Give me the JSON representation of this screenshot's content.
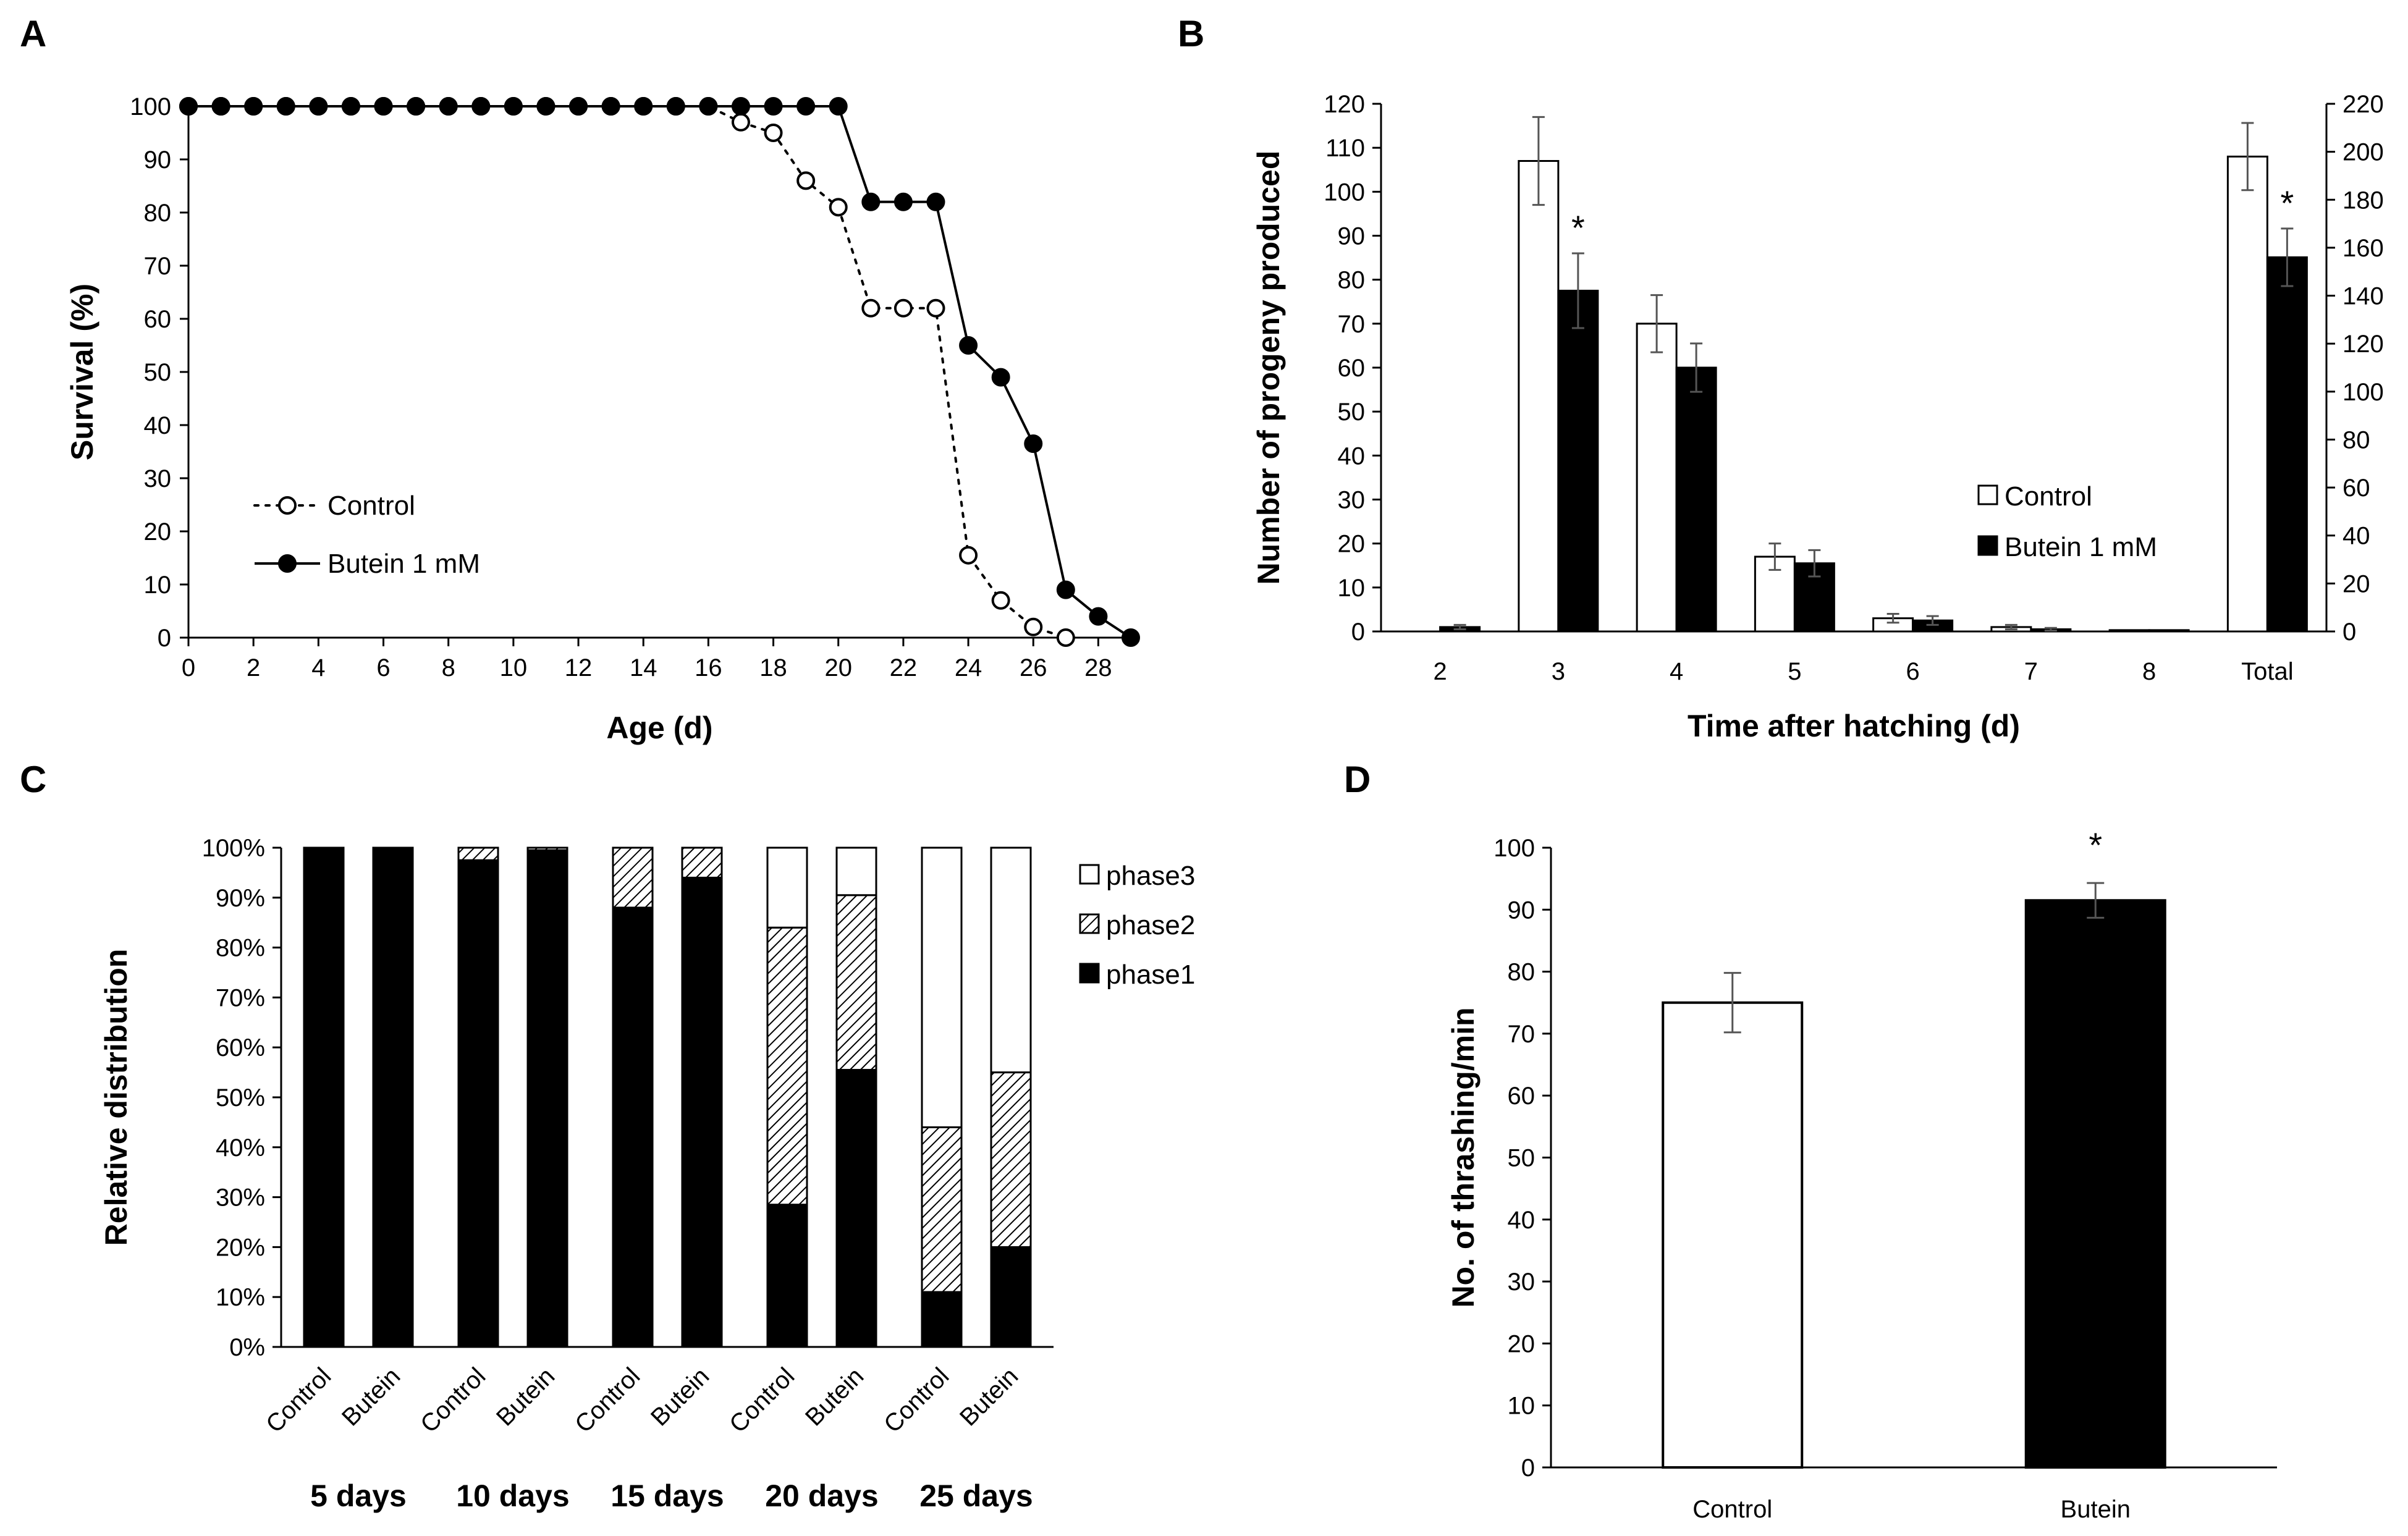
{
  "chart_data": [
    {
      "id": "A",
      "panel_label": "A",
      "type": "line",
      "xlabel": "Age (d)",
      "ylabel": "Survival (%)",
      "xlim": [
        0,
        29
      ],
      "ylim": [
        0,
        100
      ],
      "x_ticks": [
        "0",
        "2",
        "4",
        "6",
        "8",
        "10",
        "12",
        "14",
        "16",
        "18",
        "20",
        "22",
        "24",
        "26",
        "28"
      ],
      "y_ticks": [
        "0",
        "10",
        "20",
        "30",
        "40",
        "50",
        "60",
        "70",
        "80",
        "90",
        "100"
      ],
      "legend_position": "bottom-left",
      "series": [
        {
          "name": "Control",
          "style": "dotted, open circles",
          "x": [
            0,
            1,
            2,
            3,
            4,
            5,
            6,
            7,
            8,
            9,
            10,
            11,
            12,
            13,
            14,
            15,
            16,
            17,
            18,
            19,
            20,
            21,
            22,
            23,
            24,
            25,
            26,
            27
          ],
          "y": [
            100,
            100,
            100,
            100,
            100,
            100,
            100,
            100,
            100,
            100,
            100,
            100,
            100,
            100,
            100,
            100,
            100,
            97,
            95,
            86,
            81,
            62,
            62,
            62,
            15.5,
            7,
            2,
            0
          ]
        },
        {
          "name": "Butein 1 mM",
          "style": "solid, filled circles",
          "x": [
            0,
            1,
            2,
            3,
            4,
            5,
            6,
            7,
            8,
            9,
            10,
            11,
            12,
            13,
            14,
            15,
            16,
            17,
            18,
            19,
            20,
            21,
            22,
            23,
            24,
            25,
            26,
            27,
            28,
            29
          ],
          "y": [
            100,
            100,
            100,
            100,
            100,
            100,
            100,
            100,
            100,
            100,
            100,
            100,
            100,
            100,
            100,
            100,
            100,
            100,
            100,
            100,
            100,
            82,
            82,
            82,
            55,
            49,
            36.5,
            9,
            4,
            0
          ]
        }
      ]
    },
    {
      "id": "B",
      "panel_label": "B",
      "type": "bar",
      "xlabel": "Time after hatching (d)",
      "ylabel": "Number of progeny produced",
      "categories": [
        "2",
        "3",
        "4",
        "5",
        "6",
        "7",
        "8",
        "Total"
      ],
      "ylim": [
        0,
        120
      ],
      "y2lim": [
        0,
        220
      ],
      "y_ticks": [
        "0",
        "10",
        "20",
        "30",
        "40",
        "50",
        "60",
        "70",
        "80",
        "90",
        "100",
        "110",
        "120"
      ],
      "y2_ticks": [
        "0",
        "20",
        "40",
        "60",
        "80",
        "100",
        "120",
        "140",
        "160",
        "180",
        "200",
        "220"
      ],
      "legend_position": "right",
      "series": [
        {
          "name": "Control",
          "fill": "#ffffff",
          "values": [
            0,
            107,
            70,
            17,
            3,
            1,
            0.3,
            198
          ],
          "errors": [
            0,
            10,
            6.5,
            3,
            1,
            0.5,
            0.2,
            14
          ]
        },
        {
          "name": "Butein 1 mM",
          "fill": "#000000",
          "values": [
            1,
            77.5,
            60,
            15.5,
            2.5,
            0.5,
            0.3,
            156
          ],
          "errors": [
            0.5,
            8.5,
            5.5,
            3,
            1,
            0.3,
            0.2,
            12
          ]
        }
      ],
      "significance_marks": [
        "*",
        "*"
      ],
      "note": "Total bars plotted against the right axis (0-220)"
    },
    {
      "id": "C",
      "panel_label": "C",
      "type": "bar",
      "stacked": true,
      "ylabel": "Relative distribution",
      "groups": [
        "5 days",
        "10 days",
        "15 days",
        "20 days",
        "25 days"
      ],
      "bar_labels": [
        "Control",
        "Butein"
      ],
      "y_ticks": [
        "0%",
        "10%",
        "20%",
        "30%",
        "40%",
        "50%",
        "60%",
        "70%",
        "80%",
        "90%",
        "100%"
      ],
      "legend_position": "right",
      "legend": [
        {
          "name": "phase3",
          "pattern": "white"
        },
        {
          "name": "phase2",
          "pattern": "hatched"
        },
        {
          "name": "phase1",
          "pattern": "black"
        }
      ],
      "bars": [
        {
          "group": "5 days",
          "label": "Control",
          "phase1": 100,
          "phase2": 0,
          "phase3": 0
        },
        {
          "group": "5 days",
          "label": "Butein",
          "phase1": 100,
          "phase2": 0,
          "phase3": 0
        },
        {
          "group": "10 days",
          "label": "Control",
          "phase1": 97.5,
          "phase2": 2.5,
          "phase3": 0
        },
        {
          "group": "10 days",
          "label": "Butein",
          "phase1": 99.5,
          "phase2": 0.5,
          "phase3": 0
        },
        {
          "group": "15 days",
          "label": "Control",
          "phase1": 88,
          "phase2": 12,
          "phase3": 0
        },
        {
          "group": "15 days",
          "label": "Butein",
          "phase1": 94,
          "phase2": 6,
          "phase3": 0
        },
        {
          "group": "20 days",
          "label": "Control",
          "phase1": 28.5,
          "phase2": 55.5,
          "phase3": 16
        },
        {
          "group": "20 days",
          "label": "Butein",
          "phase1": 55.5,
          "phase2": 35,
          "phase3": 9.5
        },
        {
          "group": "25 days",
          "label": "Control",
          "phase1": 11,
          "phase2": 33,
          "phase3": 56
        },
        {
          "group": "25 days",
          "label": "Butein",
          "phase1": 20,
          "phase2": 35,
          "phase3": 45
        }
      ]
    },
    {
      "id": "D",
      "panel_label": "D",
      "type": "bar",
      "ylabel": "No. of thrashing/min",
      "categories": [
        "Control",
        "Butein"
      ],
      "values": [
        75,
        91.5
      ],
      "errors": [
        4.8,
        2.8
      ],
      "fills": [
        "#ffffff",
        "#000000"
      ],
      "ylim": [
        0,
        100
      ],
      "y_ticks": [
        "0",
        "10",
        "20",
        "30",
        "40",
        "50",
        "60",
        "70",
        "80",
        "90",
        "100"
      ],
      "significance_marks": [
        "*"
      ]
    }
  ]
}
